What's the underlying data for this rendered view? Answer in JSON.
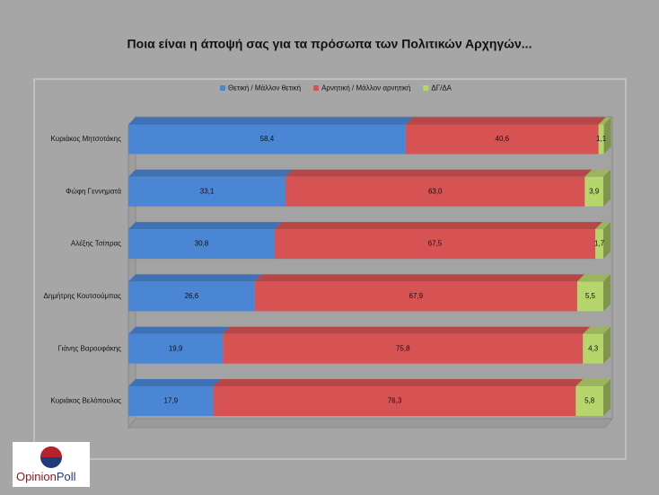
{
  "chart_data": {
    "type": "stacked-bar-horizontal",
    "title": "Ποια είναι η άποψή σας για τα πρόσωπα των Πολιτικών Αρχηγών...",
    "categories": [
      "Κυριάκος Μητσοτάκης",
      "Φώφη Γεννηματά",
      "Αλέξης Τσίπρας",
      "Δημήτρης Κουτσούμπας",
      "Γιάνης Βαρουφάκης",
      "Κυριάκος Βελόπουλος"
    ],
    "xlim": [
      0,
      100
    ],
    "series": [
      {
        "name": "Θετική / Μάλλον θετική",
        "color": "#4a86d4",
        "values": [
          58.4,
          33.1,
          30.8,
          26.6,
          19.9,
          17.9
        ],
        "value_labels": [
          "58,4",
          "33,1",
          "30,8",
          "26,6",
          "19,9",
          "17,9"
        ]
      },
      {
        "name": "Αρνητική / Μάλλον αρνητική",
        "color": "#d75252",
        "values": [
          40.6,
          63.0,
          67.5,
          67.9,
          75.8,
          76.3
        ],
        "value_labels": [
          "40,6",
          "63,0",
          "67,5",
          "67,9",
          "75,8",
          "76,3"
        ]
      },
      {
        "name": "ΔΓ/ΔΑ",
        "color": "#b6d56c",
        "values": [
          1.1,
          3.9,
          1.7,
          5.5,
          4.3,
          5.8
        ],
        "value_labels": [
          "1,1",
          "3,9",
          "1,7",
          "5,5",
          "4,3",
          "5,8"
        ]
      }
    ]
  },
  "logo": [
    "Opinion",
    "Poll"
  ]
}
